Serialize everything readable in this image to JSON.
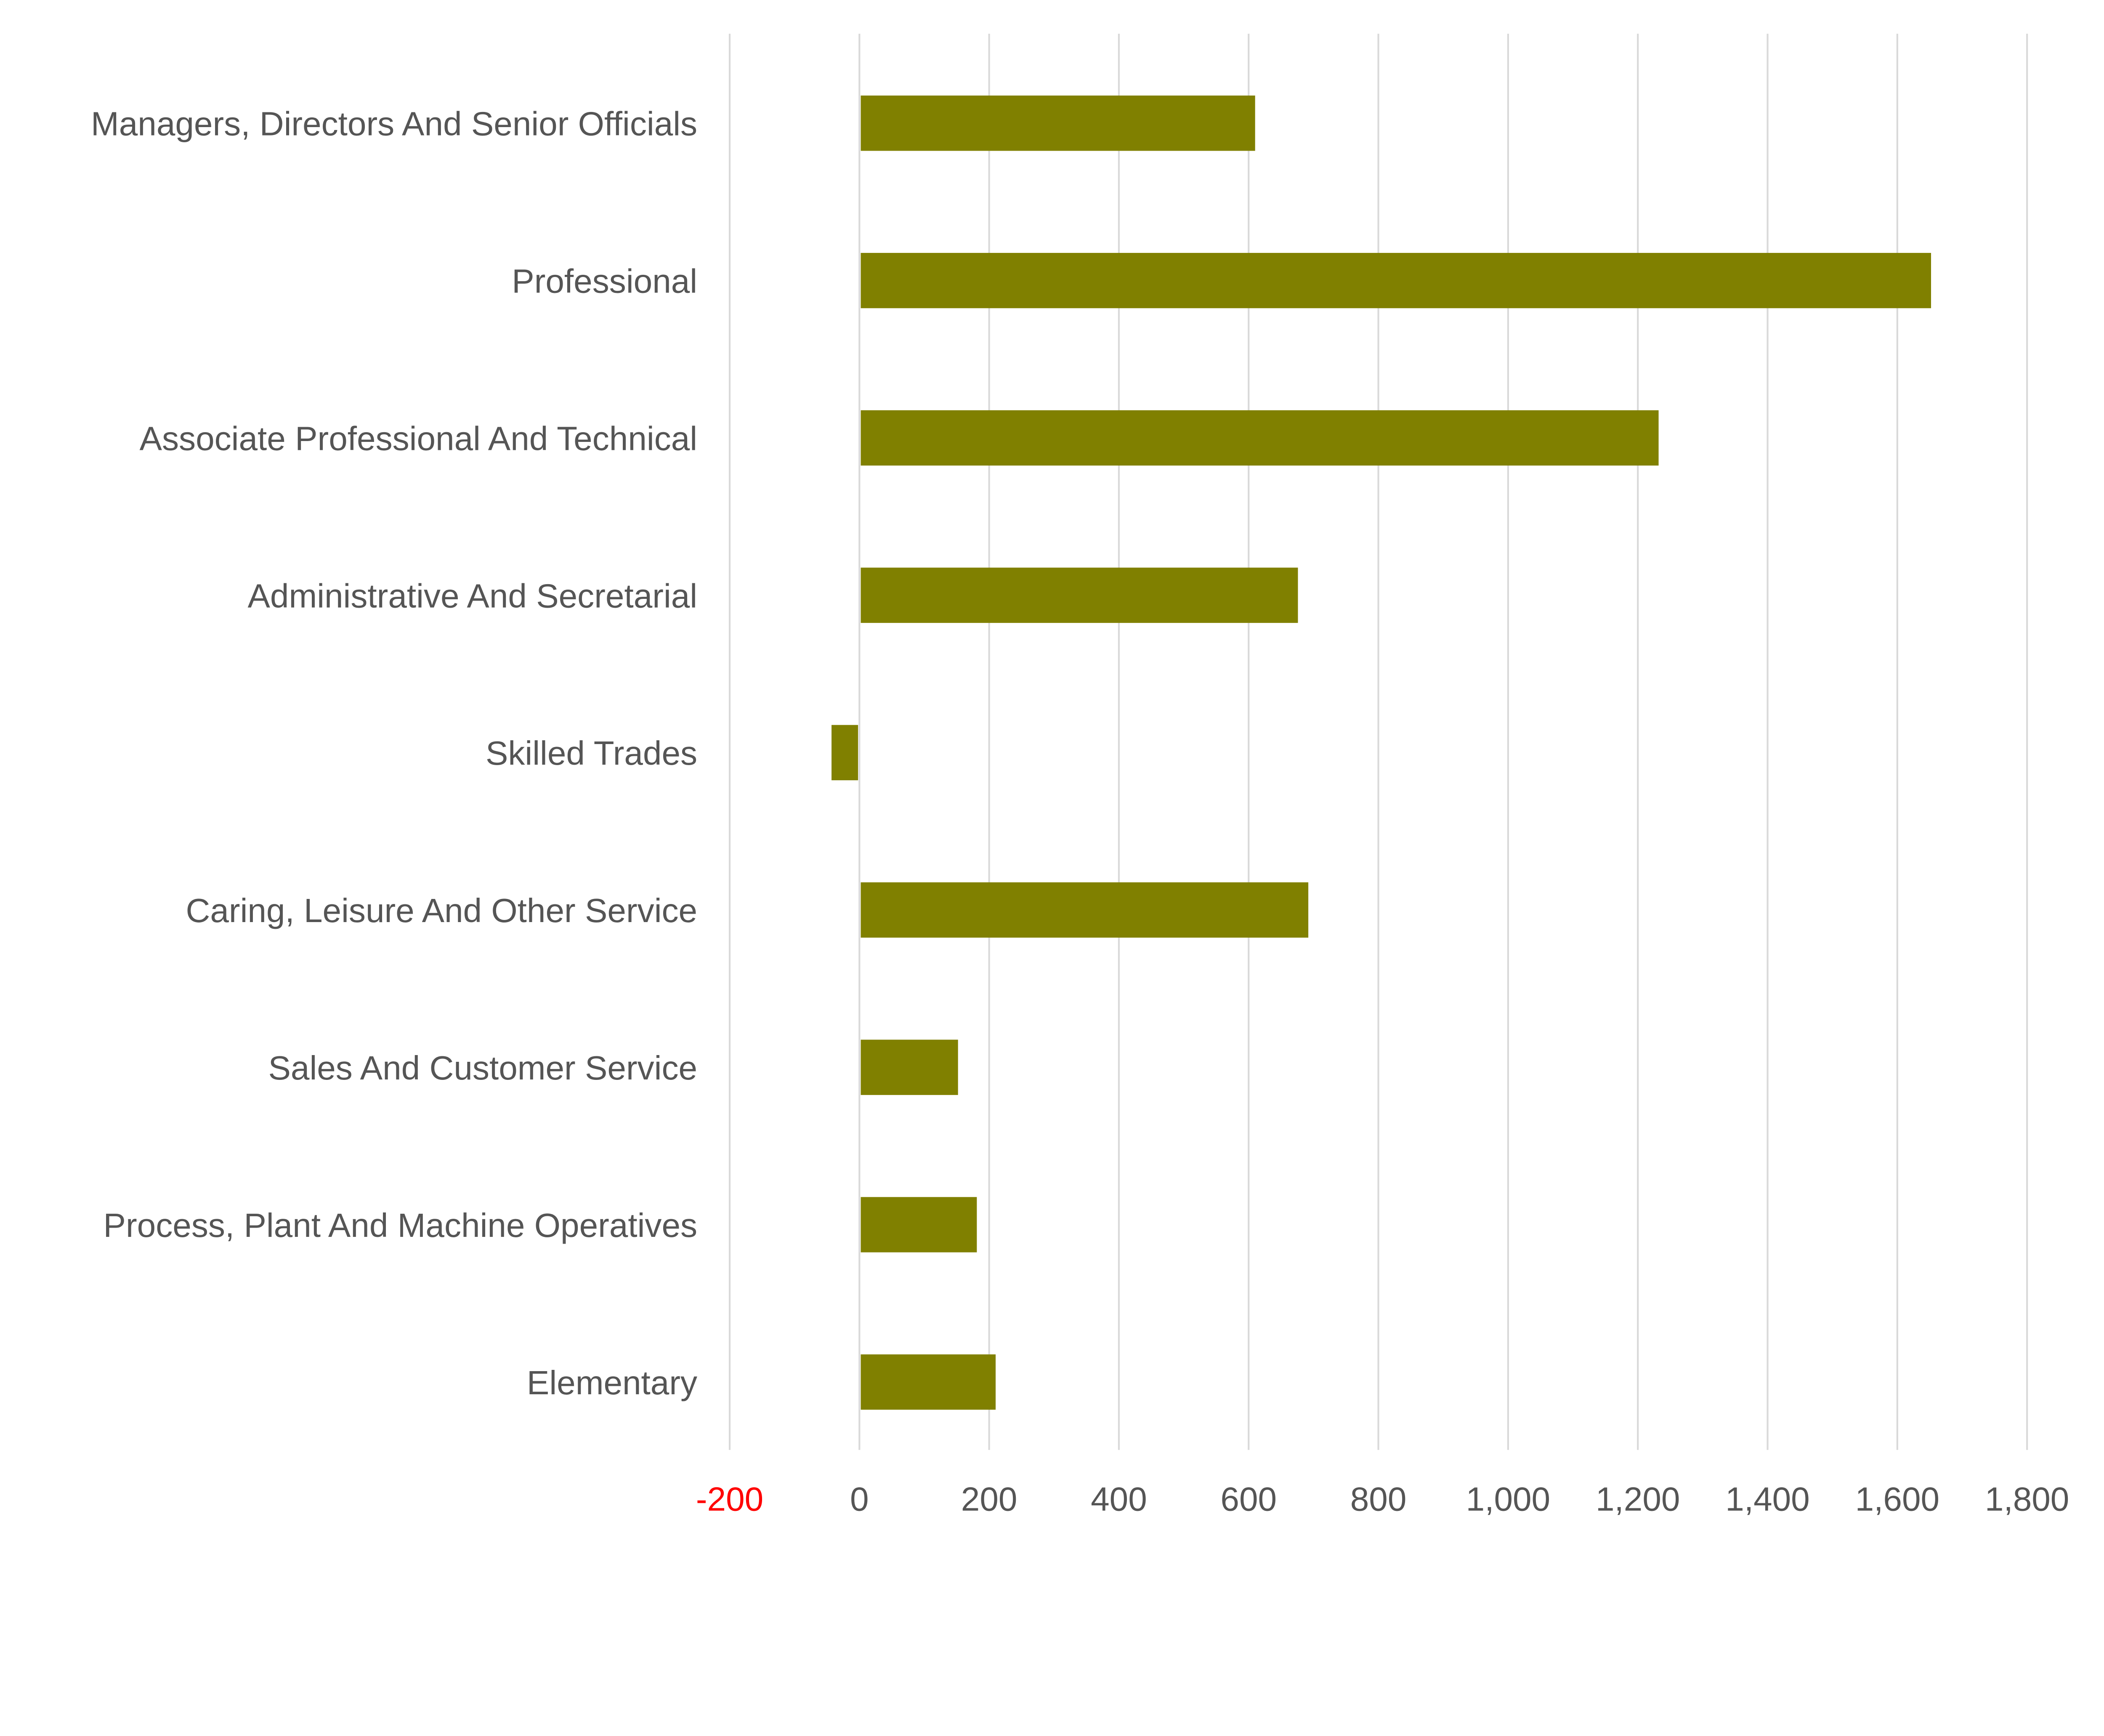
{
  "chart_data": {
    "type": "bar",
    "orientation": "horizontal",
    "title": "",
    "xlabel": "",
    "ylabel": "",
    "categories": [
      "Managers, Directors And Senior Officials",
      "Professional",
      "Associate Professional And Technical",
      "Administrative And Secretarial",
      "Skilled Trades",
      "Caring, Leisure And Other Service",
      "Sales And Customer Service",
      "Process, Plant And Machine Operatives",
      "Elementary"
    ],
    "values": [
      610,
      1652,
      1232,
      676,
      -43,
      692,
      152,
      181,
      210
    ],
    "xlim": [
      -200,
      1800
    ],
    "xticks": [
      -200,
      0,
      200,
      400,
      600,
      800,
      1000,
      1200,
      1400,
      1600,
      1800
    ],
    "xtick_labels": [
      "-200",
      "0",
      "200",
      "400",
      "600",
      "800",
      "1,000",
      "1,200",
      "1,400",
      "1,600",
      "1,800"
    ],
    "grid": true,
    "legend": "none",
    "colors": {
      "bar": "#808000",
      "grid": "#d9d9d9",
      "label": "#555555",
      "negative_tick": "#ff0000"
    }
  }
}
